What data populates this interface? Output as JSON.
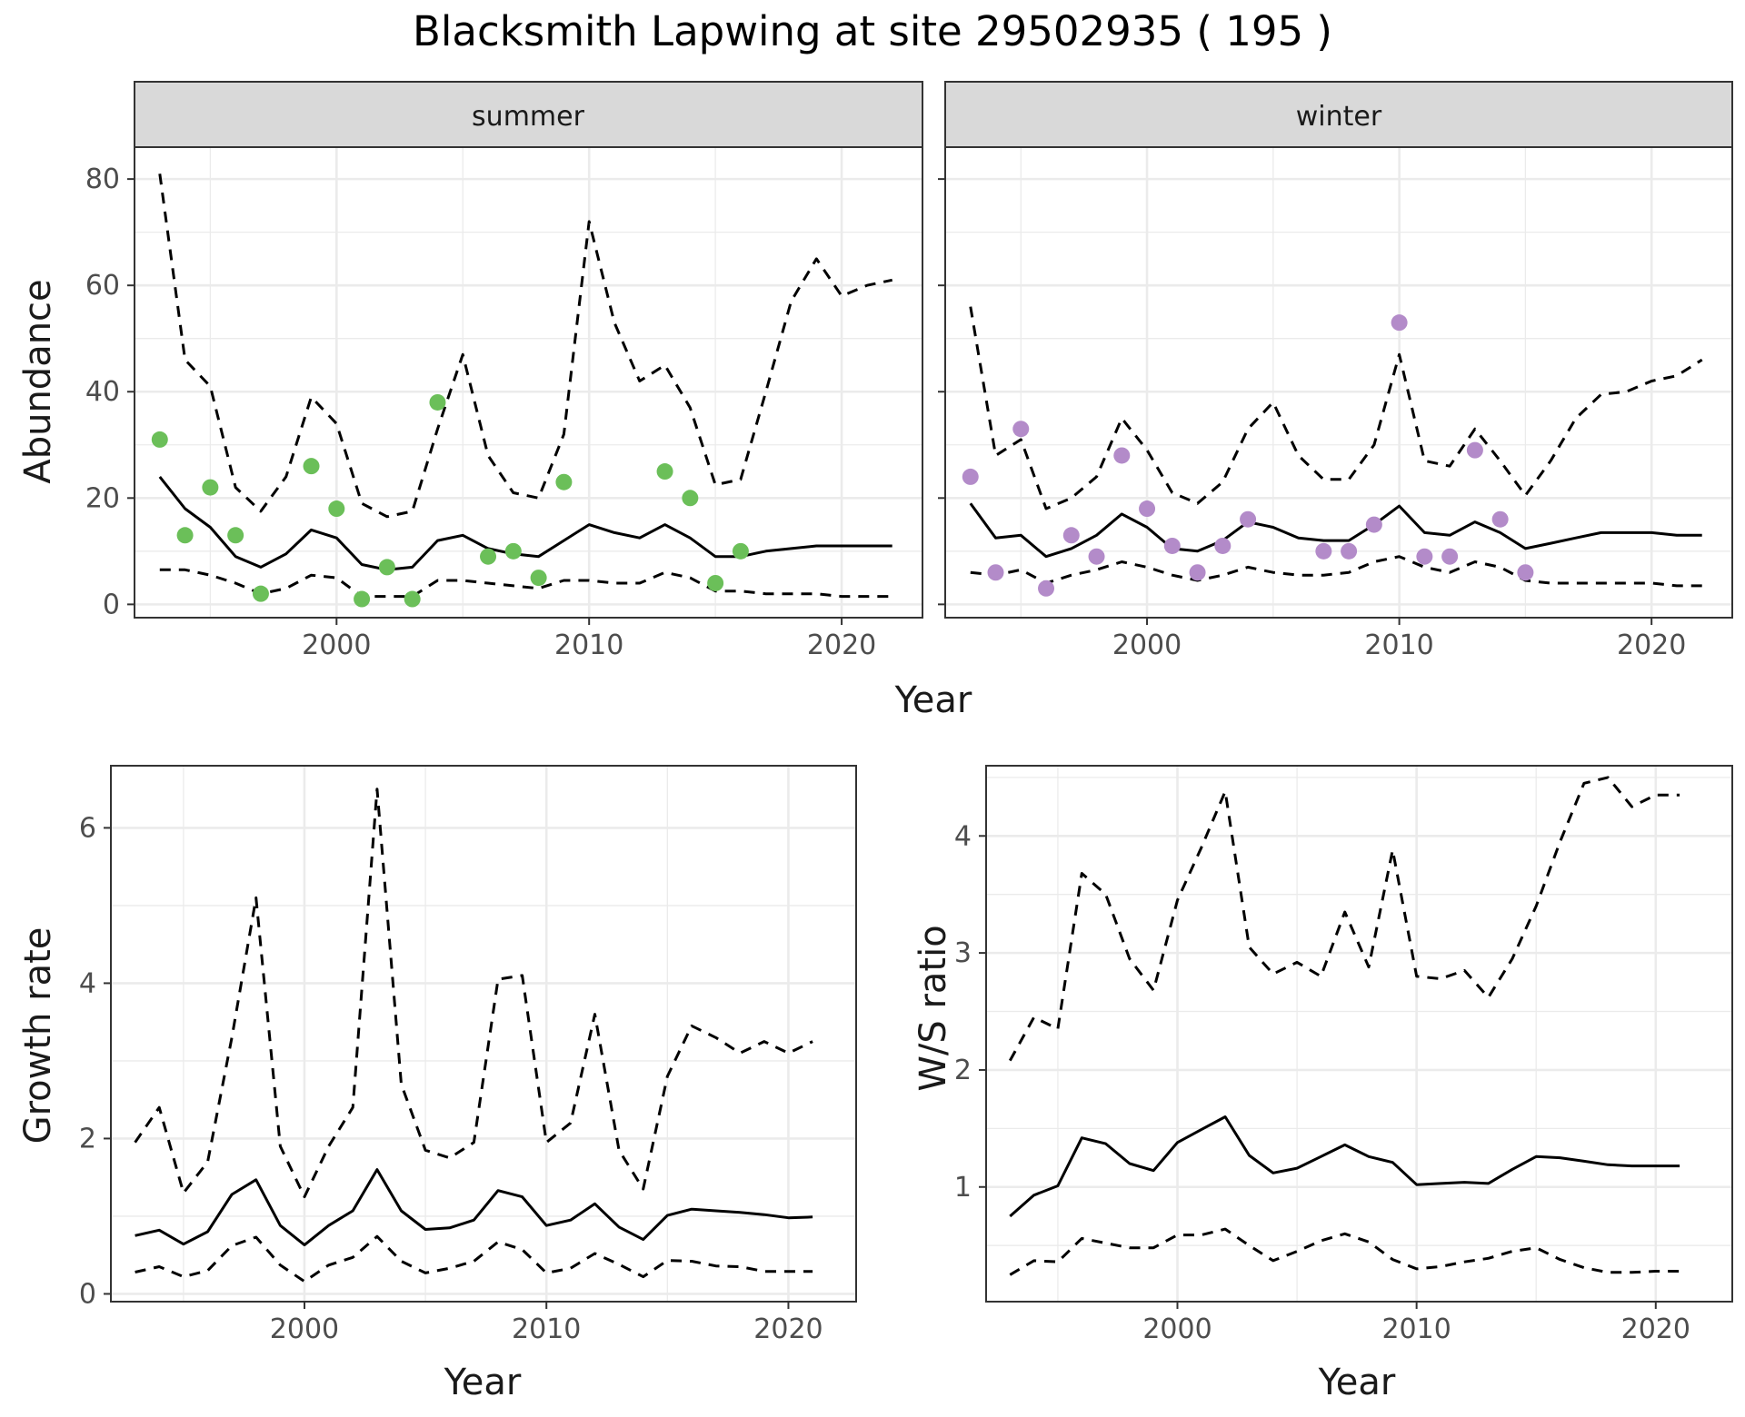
{
  "title": "Blacksmith Lapwing at site 29502935 ( 195 )",
  "colors": {
    "summer_points": "#6BBF59",
    "winter_points": "#B38BC9",
    "lines": "#000000",
    "grid": "#EBEBEB",
    "strip": "#D9D9D9"
  },
  "chart_data": [
    {
      "type": "line",
      "facet": "summer",
      "xlabel": "Year",
      "ylabel": "Abundance",
      "xlim": [
        1992,
        2023.2
      ],
      "ylim": [
        -2.5,
        86
      ],
      "xticks": [
        2000,
        2010,
        2020
      ],
      "yticks": [
        0,
        20,
        40,
        60,
        80
      ],
      "grid": true,
      "series": [
        {
          "style": "dashed",
          "x": [
            1993,
            1994,
            1995,
            1996,
            1997,
            1998,
            1999,
            2000,
            2001,
            2002,
            2003,
            2004,
            2005,
            2006,
            2007,
            2008,
            2009,
            2010,
            2011,
            2012,
            2013,
            2014,
            2015,
            2016,
            2017,
            2018,
            2019,
            2020,
            2021,
            2022
          ],
          "y": [
            81,
            46,
            41,
            22,
            17.5,
            24,
            39,
            34,
            19,
            16.5,
            17.5,
            33,
            47,
            28,
            21,
            20,
            32,
            72,
            53,
            42,
            45,
            37,
            22.5,
            23.5,
            40,
            57,
            65,
            58,
            60,
            61
          ]
        },
        {
          "style": "solid",
          "x": [
            1993,
            1994,
            1995,
            1996,
            1997,
            1998,
            1999,
            2000,
            2001,
            2002,
            2003,
            2004,
            2005,
            2006,
            2007,
            2008,
            2009,
            2010,
            2011,
            2012,
            2013,
            2014,
            2015,
            2016,
            2017,
            2018,
            2019,
            2020,
            2021,
            2022
          ],
          "y": [
            24,
            18,
            14.5,
            9,
            7,
            9.5,
            14,
            12.5,
            7.5,
            6.5,
            7,
            12,
            13,
            10.5,
            9.5,
            9,
            12,
            15,
            13.5,
            12.5,
            15,
            12.5,
            9,
            9,
            10,
            10.5,
            11,
            11,
            11,
            11
          ]
        },
        {
          "style": "dashed",
          "x": [
            1993,
            1994,
            1995,
            1996,
            1997,
            1998,
            1999,
            2000,
            2001,
            2002,
            2003,
            2004,
            2005,
            2006,
            2007,
            2008,
            2009,
            2010,
            2011,
            2012,
            2013,
            2014,
            2015,
            2016,
            2017,
            2018,
            2019,
            2020,
            2021,
            2022
          ],
          "y": [
            6.5,
            6.5,
            5.5,
            4,
            2,
            3,
            5.5,
            5,
            1.5,
            1.5,
            1.5,
            4.5,
            4.5,
            4,
            3.5,
            3,
            4.5,
            4.5,
            4,
            4,
            6,
            5,
            2.5,
            2.5,
            2,
            2,
            2,
            1.5,
            1.5,
            1.5
          ]
        },
        {
          "style": "points",
          "x": [
            1993,
            1994,
            1995,
            1996,
            1997,
            1999,
            2000,
            2001,
            2002,
            2003,
            2004,
            2006,
            2007,
            2008,
            2009,
            2013,
            2014,
            2015,
            2016
          ],
          "y": [
            31,
            13,
            22,
            13,
            2,
            26,
            18,
            1,
            7,
            1,
            38,
            9,
            10,
            5,
            23,
            25,
            20,
            4,
            10
          ]
        }
      ]
    },
    {
      "type": "line",
      "facet": "winter",
      "xlabel": "Year",
      "ylabel": "",
      "xlim": [
        1992,
        2023.2
      ],
      "ylim": [
        -2.5,
        86
      ],
      "xticks": [
        2000,
        2010,
        2020
      ],
      "yticks": [
        0,
        20,
        40,
        60,
        80
      ],
      "grid": true,
      "series": [
        {
          "style": "dashed",
          "x": [
            1993,
            1994,
            1995,
            1996,
            1997,
            1998,
            1999,
            2000,
            2001,
            2002,
            2003,
            2004,
            2005,
            2006,
            2007,
            2008,
            2009,
            2010,
            2011,
            2012,
            2013,
            2014,
            2015,
            2016,
            2017,
            2018,
            2019,
            2020,
            2021,
            2022
          ],
          "y": [
            56,
            28,
            31,
            18,
            20,
            24,
            35,
            29,
            21,
            19,
            23,
            33,
            38,
            28,
            23.5,
            23.5,
            30,
            47,
            27,
            26,
            33,
            27,
            20.5,
            27,
            35,
            39.5,
            40,
            42,
            43,
            46
          ]
        },
        {
          "style": "solid",
          "x": [
            1993,
            1994,
            1995,
            1996,
            1997,
            1998,
            1999,
            2000,
            2001,
            2002,
            2003,
            2004,
            2005,
            2006,
            2007,
            2008,
            2009,
            2010,
            2011,
            2012,
            2013,
            2014,
            2015,
            2016,
            2017,
            2018,
            2019,
            2020,
            2021,
            2022
          ],
          "y": [
            19,
            12.5,
            13,
            9,
            10.5,
            13,
            17,
            14.5,
            10.5,
            10,
            12,
            15.5,
            14.5,
            12.5,
            12,
            12,
            15,
            18.5,
            13.5,
            13,
            15.5,
            13.5,
            10.5,
            11.5,
            12.5,
            13.5,
            13.5,
            13.5,
            13,
            13
          ]
        },
        {
          "style": "dashed",
          "x": [
            1993,
            1994,
            1995,
            1996,
            1997,
            1998,
            1999,
            2000,
            2001,
            2002,
            2003,
            2004,
            2005,
            2006,
            2007,
            2008,
            2009,
            2010,
            2011,
            2012,
            2013,
            2014,
            2015,
            2016,
            2017,
            2018,
            2019,
            2020,
            2021,
            2022
          ],
          "y": [
            6,
            5.5,
            6.5,
            4,
            5.5,
            6.5,
            8,
            7,
            5.5,
            4.5,
            5.5,
            7,
            6,
            5.5,
            5.5,
            6,
            8,
            9,
            7,
            6,
            8,
            7,
            4.5,
            4,
            4,
            4,
            4,
            4,
            3.5,
            3.5
          ]
        },
        {
          "style": "points",
          "x": [
            1993,
            1994,
            1995,
            1996,
            1997,
            1998,
            1999,
            2000,
            2001,
            2002,
            2003,
            2004,
            2007,
            2008,
            2009,
            2010,
            2011,
            2012,
            2013,
            2014,
            2015
          ],
          "y": [
            24,
            6,
            33,
            3,
            13,
            9,
            28,
            18,
            11,
            6,
            11,
            16,
            10,
            10,
            15,
            53,
            9,
            9,
            29,
            16,
            6
          ]
        }
      ]
    },
    {
      "type": "line",
      "xlabel": "Year",
      "ylabel": "Growth rate",
      "xlim": [
        1992,
        2022.8
      ],
      "ylim": [
        -0.1,
        6.8
      ],
      "xticks": [
        2000,
        2010,
        2020
      ],
      "yticks": [
        0,
        2,
        4,
        6
      ],
      "grid": true,
      "series": [
        {
          "style": "dashed",
          "x": [
            1993,
            1994,
            1995,
            1996,
            1997,
            1998,
            1999,
            2000,
            2001,
            2002,
            2003,
            2004,
            2005,
            2006,
            2007,
            2008,
            2009,
            2010,
            2011,
            2012,
            2013,
            2014,
            2015,
            2016,
            2017,
            2018,
            2019,
            2020,
            2021
          ],
          "y": [
            1.95,
            2.4,
            1.3,
            1.7,
            3.3,
            5.1,
            1.9,
            1.25,
            1.9,
            2.4,
            6.5,
            2.7,
            1.85,
            1.75,
            1.95,
            4.05,
            4.1,
            1.95,
            2.2,
            3.6,
            1.85,
            1.35,
            2.8,
            3.45,
            3.3,
            3.1,
            3.25,
            3.1,
            3.25
          ]
        },
        {
          "style": "solid",
          "x": [
            1993,
            1994,
            1995,
            1996,
            1997,
            1998,
            1999,
            2000,
            2001,
            2002,
            2003,
            2004,
            2005,
            2006,
            2007,
            2008,
            2009,
            2010,
            2011,
            2012,
            2013,
            2014,
            2015,
            2016,
            2017,
            2018,
            2019,
            2020,
            2021
          ],
          "y": [
            0.75,
            0.82,
            0.64,
            0.8,
            1.28,
            1.47,
            0.88,
            0.63,
            0.88,
            1.07,
            1.6,
            1.07,
            0.83,
            0.85,
            0.95,
            1.33,
            1.25,
            0.88,
            0.95,
            1.16,
            0.86,
            0.7,
            1.01,
            1.09,
            1.07,
            1.05,
            1.02,
            0.98,
            0.99
          ]
        },
        {
          "style": "dashed",
          "x": [
            1993,
            1994,
            1995,
            1996,
            1997,
            1998,
            1999,
            2000,
            2001,
            2002,
            2003,
            2004,
            2005,
            2006,
            2007,
            2008,
            2009,
            2010,
            2011,
            2012,
            2013,
            2014,
            2015,
            2016,
            2017,
            2018,
            2019,
            2020,
            2021
          ],
          "y": [
            0.28,
            0.35,
            0.22,
            0.3,
            0.62,
            0.73,
            0.37,
            0.16,
            0.37,
            0.47,
            0.74,
            0.42,
            0.27,
            0.33,
            0.42,
            0.67,
            0.57,
            0.27,
            0.33,
            0.52,
            0.38,
            0.22,
            0.43,
            0.42,
            0.36,
            0.35,
            0.29,
            0.29,
            0.29
          ]
        }
      ]
    },
    {
      "type": "line",
      "xlabel": "Year",
      "ylabel": "W/S ratio",
      "xlim": [
        1992,
        2023.2
      ],
      "ylim": [
        0.02,
        4.6
      ],
      "xticks": [
        2000,
        2010,
        2020
      ],
      "yticks": [
        1,
        2,
        3,
        4
      ],
      "grid": true,
      "series": [
        {
          "style": "dashed",
          "x": [
            1993,
            1994,
            1995,
            1996,
            1997,
            1998,
            1999,
            2000,
            2001,
            2002,
            2003,
            2004,
            2005,
            2006,
            2007,
            2008,
            2009,
            2010,
            2011,
            2012,
            2013,
            2014,
            2015,
            2016,
            2017,
            2018,
            2019,
            2020,
            2021
          ],
          "y": [
            2.08,
            2.45,
            2.35,
            3.68,
            3.5,
            2.95,
            2.68,
            3.45,
            3.9,
            4.38,
            3.05,
            2.82,
            2.92,
            2.8,
            3.35,
            2.88,
            3.88,
            2.8,
            2.78,
            2.85,
            2.62,
            2.95,
            3.4,
            3.95,
            4.45,
            4.5,
            4.25,
            4.35,
            4.35
          ]
        },
        {
          "style": "solid",
          "x": [
            1993,
            1994,
            1995,
            1996,
            1997,
            1998,
            1999,
            2000,
            2001,
            2002,
            2003,
            2004,
            2005,
            2006,
            2007,
            2008,
            2009,
            2010,
            2011,
            2012,
            2013,
            2014,
            2015,
            2016,
            2017,
            2018,
            2019,
            2020,
            2021
          ],
          "y": [
            0.75,
            0.93,
            1.01,
            1.42,
            1.37,
            1.2,
            1.14,
            1.38,
            1.49,
            1.6,
            1.27,
            1.12,
            1.16,
            1.26,
            1.36,
            1.26,
            1.21,
            1.02,
            1.03,
            1.04,
            1.03,
            1.15,
            1.26,
            1.25,
            1.22,
            1.19,
            1.18,
            1.18,
            1.18
          ]
        },
        {
          "style": "dashed",
          "x": [
            1993,
            1994,
            1995,
            1996,
            1997,
            1998,
            1999,
            2000,
            2001,
            2002,
            2003,
            2004,
            2005,
            2006,
            2007,
            2008,
            2009,
            2010,
            2011,
            2012,
            2013,
            2014,
            2015,
            2016,
            2017,
            2018,
            2019,
            2020,
            2021
          ],
          "y": [
            0.25,
            0.37,
            0.36,
            0.56,
            0.52,
            0.48,
            0.48,
            0.59,
            0.59,
            0.64,
            0.5,
            0.37,
            0.45,
            0.54,
            0.6,
            0.53,
            0.38,
            0.3,
            0.32,
            0.36,
            0.39,
            0.45,
            0.48,
            0.38,
            0.31,
            0.27,
            0.27,
            0.28,
            0.28
          ]
        }
      ]
    }
  ],
  "facets": {
    "summer": "summer",
    "winter": "winter"
  }
}
